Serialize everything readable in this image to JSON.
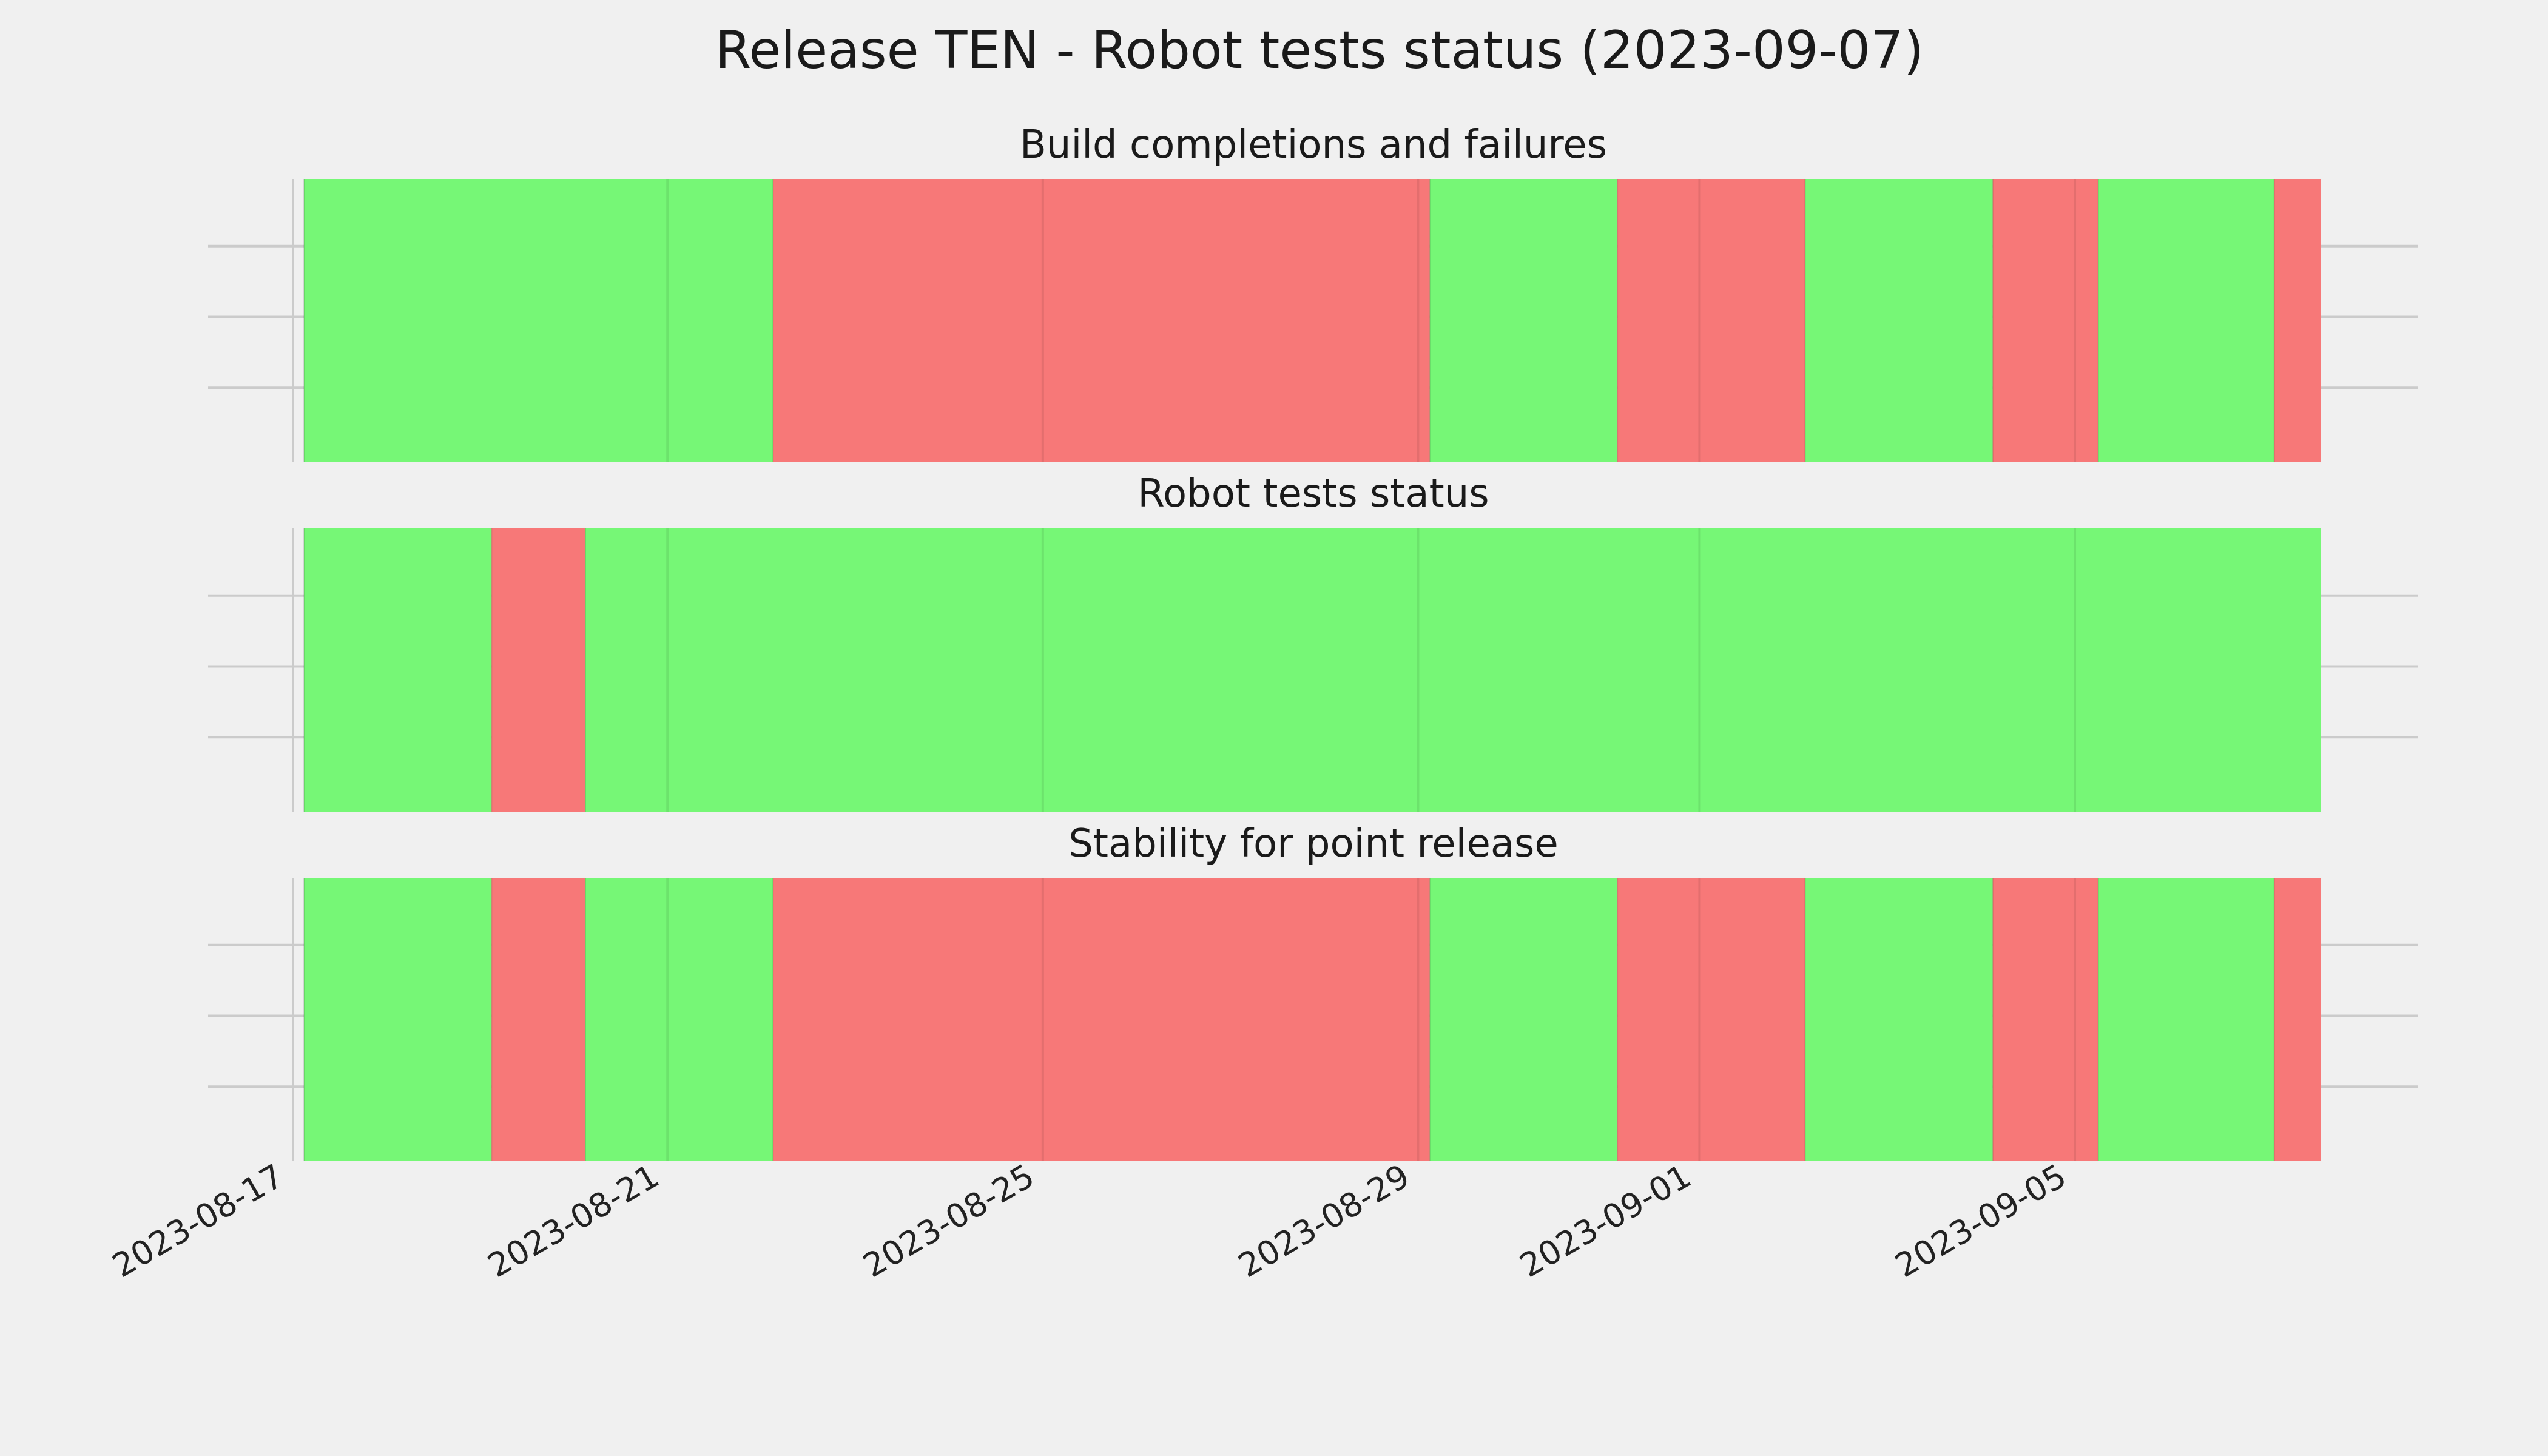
{
  "chart_data": {
    "type": "timeline",
    "title": "Release TEN - Robot tests status (2023-09-07)",
    "x_ticks": [
      "2023-08-17",
      "2023-08-21",
      "2023-08-25",
      "2023-08-29",
      "2023-09-01",
      "2023-09-05"
    ],
    "xlim": [
      "2023-08-17",
      "2023-09-08"
    ],
    "grid": true,
    "colors": {
      "pass": "#76f776",
      "fail": "#f77878",
      "background": "#f0f0f0",
      "grid": "#cbcbcb"
    },
    "panels": [
      {
        "title": "Build completions and failures",
        "segments": [
          {
            "start": "2023-08-17T03:00",
            "end": "2023-08-22T03:00",
            "status": "pass"
          },
          {
            "start": "2023-08-22T03:00",
            "end": "2023-08-29T03:00",
            "status": "fail"
          },
          {
            "start": "2023-08-29T03:00",
            "end": "2023-08-31T03:00",
            "status": "pass"
          },
          {
            "start": "2023-08-31T03:00",
            "end": "2023-09-02T03:00",
            "status": "fail"
          },
          {
            "start": "2023-09-02T03:00",
            "end": "2023-09-04T03:00",
            "status": "pass"
          },
          {
            "start": "2023-09-04T03:00",
            "end": "2023-09-05T06:00",
            "status": "fail"
          },
          {
            "start": "2023-09-05T06:00",
            "end": "2023-09-07T03:00",
            "status": "pass"
          },
          {
            "start": "2023-09-07T03:00",
            "end": "2023-09-07T15:00",
            "status": "fail"
          }
        ]
      },
      {
        "title": "Robot tests status",
        "segments": [
          {
            "start": "2023-08-17T03:00",
            "end": "2023-08-19T03:00",
            "status": "pass"
          },
          {
            "start": "2023-08-19T03:00",
            "end": "2023-08-20T03:00",
            "status": "fail"
          },
          {
            "start": "2023-08-20T03:00",
            "end": "2023-09-07T15:00",
            "status": "pass"
          }
        ]
      },
      {
        "title": "Stability for point release",
        "segments": [
          {
            "start": "2023-08-17T03:00",
            "end": "2023-08-19T03:00",
            "status": "pass"
          },
          {
            "start": "2023-08-19T03:00",
            "end": "2023-08-20T03:00",
            "status": "fail"
          },
          {
            "start": "2023-08-20T03:00",
            "end": "2023-08-22T03:00",
            "status": "pass"
          },
          {
            "start": "2023-08-22T03:00",
            "end": "2023-08-29T03:00",
            "status": "fail"
          },
          {
            "start": "2023-08-29T03:00",
            "end": "2023-08-31T03:00",
            "status": "pass"
          },
          {
            "start": "2023-08-31T03:00",
            "end": "2023-09-02T03:00",
            "status": "fail"
          },
          {
            "start": "2023-09-02T03:00",
            "end": "2023-09-04T03:00",
            "status": "pass"
          },
          {
            "start": "2023-09-04T03:00",
            "end": "2023-09-05T06:00",
            "status": "fail"
          },
          {
            "start": "2023-09-05T06:00",
            "end": "2023-09-07T03:00",
            "status": "pass"
          },
          {
            "start": "2023-09-07T03:00",
            "end": "2023-09-07T15:00",
            "status": "fail"
          }
        ]
      }
    ]
  }
}
